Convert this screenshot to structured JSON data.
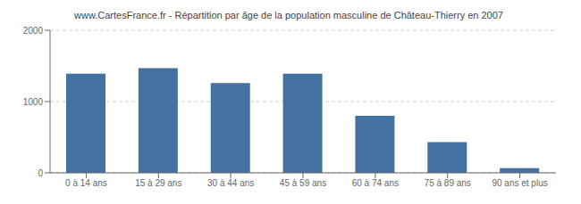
{
  "chart_data": {
    "type": "bar",
    "title": "www.CartesFrance.fr - Répartition par âge de la population masculine de Château-Thierry en 2007",
    "categories": [
      "0 à 14 ans",
      "15 à 29 ans",
      "30 à 44 ans",
      "45 à 59 ans",
      "60 à 74 ans",
      "75 à 89 ans",
      "90 ans et plus"
    ],
    "values": [
      1390,
      1470,
      1260,
      1390,
      800,
      430,
      65
    ],
    "color": "#4472a0",
    "ylim": [
      0,
      2000
    ],
    "yticks": [
      0,
      1000,
      2000
    ],
    "grid": true
  }
}
